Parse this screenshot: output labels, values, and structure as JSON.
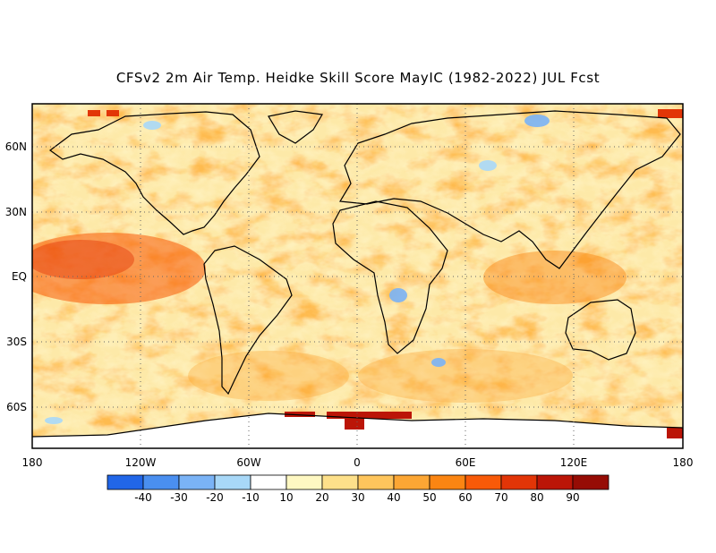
{
  "title": "CFSv2 2m Air Temp. Heidke Skill Score MayIC (1982-2022) JUL Fcst",
  "lat_labels": [
    "60N",
    "30N",
    "EQ",
    "30S",
    "60S"
  ],
  "lon_labels": [
    "180",
    "120W",
    "60W",
    "0",
    "60E",
    "120E",
    "180"
  ],
  "colorbar": {
    "ticks": [
      "-40",
      "-30",
      "-20",
      "-10",
      "10",
      "20",
      "30",
      "40",
      "50",
      "60",
      "70",
      "80",
      "90"
    ],
    "colors": [
      "#2166e8",
      "#4a8ff0",
      "#7ab3f6",
      "#a8d8f8",
      "#ffffff",
      "#fef8c2",
      "#fde08a",
      "#fec55c",
      "#fca634",
      "#fb8512",
      "#f85a08",
      "#e23507",
      "#bb1507",
      "#960c05"
    ]
  },
  "colors": {
    "land_outline": "#000000",
    "grid": "#666666"
  }
}
